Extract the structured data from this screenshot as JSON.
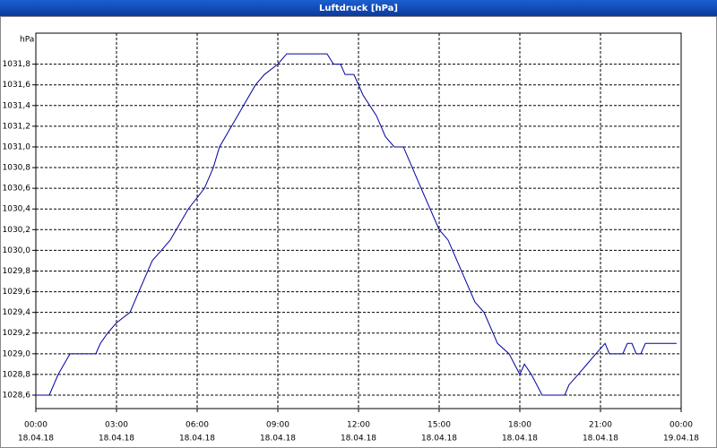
{
  "chart_data": {
    "type": "line",
    "title": "Luftdruck [hPa]",
    "y_unit": "hPa",
    "x": [
      0,
      0.5,
      0.83,
      1.27,
      2.23,
      2.4,
      2.67,
      3,
      3.5,
      3.83,
      4.33,
      4.67,
      5,
      5.67,
      6.27,
      6.6,
      6.83,
      7.5,
      8.17,
      8.5,
      9,
      9.33,
      10.83,
      11.07,
      11.33,
      11.5,
      11.83,
      12.17,
      12.67,
      13,
      13.33,
      13.67,
      14.33,
      15,
      15.33,
      15.83,
      16.33,
      16.67,
      17.17,
      17.6,
      18,
      18.17,
      18.43,
      18.83,
      19.67,
      19.83,
      20.17,
      20.5,
      20.83,
      21.17,
      21.33,
      21.83,
      22,
      22.17,
      22.33,
      22.5,
      22.67,
      23.83
    ],
    "series": [
      {
        "name": "Luftdruck",
        "color": "#0000a0",
        "values": [
          1028.6,
          1028.6,
          1028.8,
          1029.0,
          1029.0,
          1029.1,
          1029.2,
          1029.3,
          1029.4,
          1029.6,
          1029.9,
          1030.0,
          1030.1,
          1030.4,
          1030.6,
          1030.8,
          1031.0,
          1031.3,
          1031.6,
          1031.7,
          1031.8,
          1031.9,
          1031.9,
          1031.8,
          1031.8,
          1031.7,
          1031.7,
          1031.5,
          1031.3,
          1031.1,
          1031.0,
          1031.0,
          1030.6,
          1030.2,
          1030.1,
          1029.8,
          1029.5,
          1029.4,
          1029.1,
          1029.0,
          1028.8,
          1028.9,
          1028.8,
          1028.6,
          1028.6,
          1028.7,
          1028.8,
          1028.9,
          1029.0,
          1029.1,
          1029.0,
          1029.0,
          1029.1,
          1029.1,
          1029.0,
          1029.0,
          1029.1,
          1029.1
        ]
      }
    ],
    "xlim": [
      0,
      24
    ],
    "xticks": [
      {
        "value": 0,
        "label": "00:00",
        "date": "18.04.18"
      },
      {
        "value": 3,
        "label": "03:00",
        "date": "18.04.18"
      },
      {
        "value": 6,
        "label": "06:00",
        "date": "18.04.18"
      },
      {
        "value": 9,
        "label": "09:00",
        "date": "18.04.18"
      },
      {
        "value": 12,
        "label": "12:00",
        "date": "18.04.18"
      },
      {
        "value": 15,
        "label": "15:00",
        "date": "18.04.18"
      },
      {
        "value": 18,
        "label": "18:00",
        "date": "18.04.18"
      },
      {
        "value": 21,
        "label": "21:00",
        "date": "18.04.18"
      },
      {
        "value": 24,
        "label": "00:00",
        "date": "19.04.18"
      }
    ],
    "ylim": [
      1028.47,
      1032.1
    ],
    "yticks": [
      {
        "value": 1028.6,
        "label": "1028,6"
      },
      {
        "value": 1028.8,
        "label": "1028,8"
      },
      {
        "value": 1029.0,
        "label": "1029,0"
      },
      {
        "value": 1029.2,
        "label": "1029,2"
      },
      {
        "value": 1029.4,
        "label": "1029,4"
      },
      {
        "value": 1029.6,
        "label": "1029,6"
      },
      {
        "value": 1029.8,
        "label": "1029,8"
      },
      {
        "value": 1030.0,
        "label": "1030,0"
      },
      {
        "value": 1030.2,
        "label": "1030,2"
      },
      {
        "value": 1030.4,
        "label": "1030,4"
      },
      {
        "value": 1030.6,
        "label": "1030,6"
      },
      {
        "value": 1030.8,
        "label": "1030,8"
      },
      {
        "value": 1031.0,
        "label": "1031,0"
      },
      {
        "value": 1031.2,
        "label": "1031,2"
      },
      {
        "value": 1031.4,
        "label": "1031,4"
      },
      {
        "value": 1031.6,
        "label": "1031,6"
      },
      {
        "value": 1031.8,
        "label": "1031,8"
      }
    ],
    "grid": true
  }
}
